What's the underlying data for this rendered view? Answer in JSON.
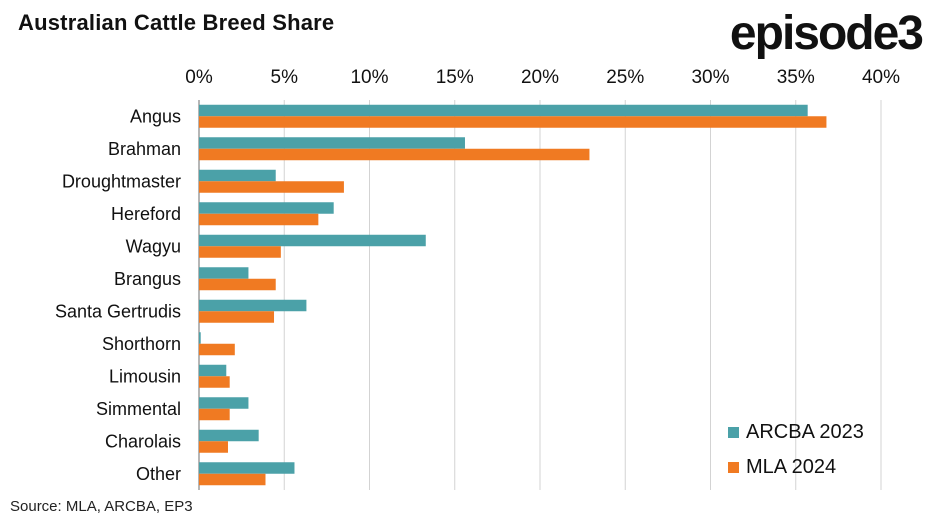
{
  "title": "Australian Cattle Breed Share",
  "brand": "episode3",
  "source": "Source:  MLA, ARCBA, EP3",
  "colors": {
    "arcba": "#4BA1A8",
    "mla": "#F07A22",
    "grid": "#d3d3d3",
    "axis": "#9e9e9e",
    "text": "#111111"
  },
  "chart_data": {
    "type": "bar",
    "orientation": "horizontal",
    "title": "Australian Cattle Breed Share",
    "categories": [
      "Angus",
      "Brahman",
      "Droughtmaster",
      "Hereford",
      "Wagyu",
      "Brangus",
      "Santa Gertrudis",
      "Shorthorn",
      "Limousin",
      "Simmental",
      "Charolais",
      "Other"
    ],
    "series": [
      {
        "name": "ARCBA 2023",
        "color": "#4BA1A8",
        "values": [
          35.7,
          15.6,
          4.5,
          7.9,
          13.3,
          2.9,
          6.3,
          0.1,
          1.6,
          2.9,
          3.5,
          5.6
        ]
      },
      {
        "name": "MLA 2024",
        "color": "#F07A22",
        "values": [
          36.8,
          22.9,
          8.5,
          7.0,
          4.8,
          4.5,
          4.4,
          2.1,
          1.8,
          1.8,
          1.7,
          3.9
        ]
      }
    ],
    "xlim": [
      0,
      40
    ],
    "xticks": [
      "0%",
      "5%",
      "10%",
      "15%",
      "20%",
      "25%",
      "30%",
      "35%",
      "40%"
    ],
    "grid": true,
    "legend_position": "bottom-right"
  }
}
